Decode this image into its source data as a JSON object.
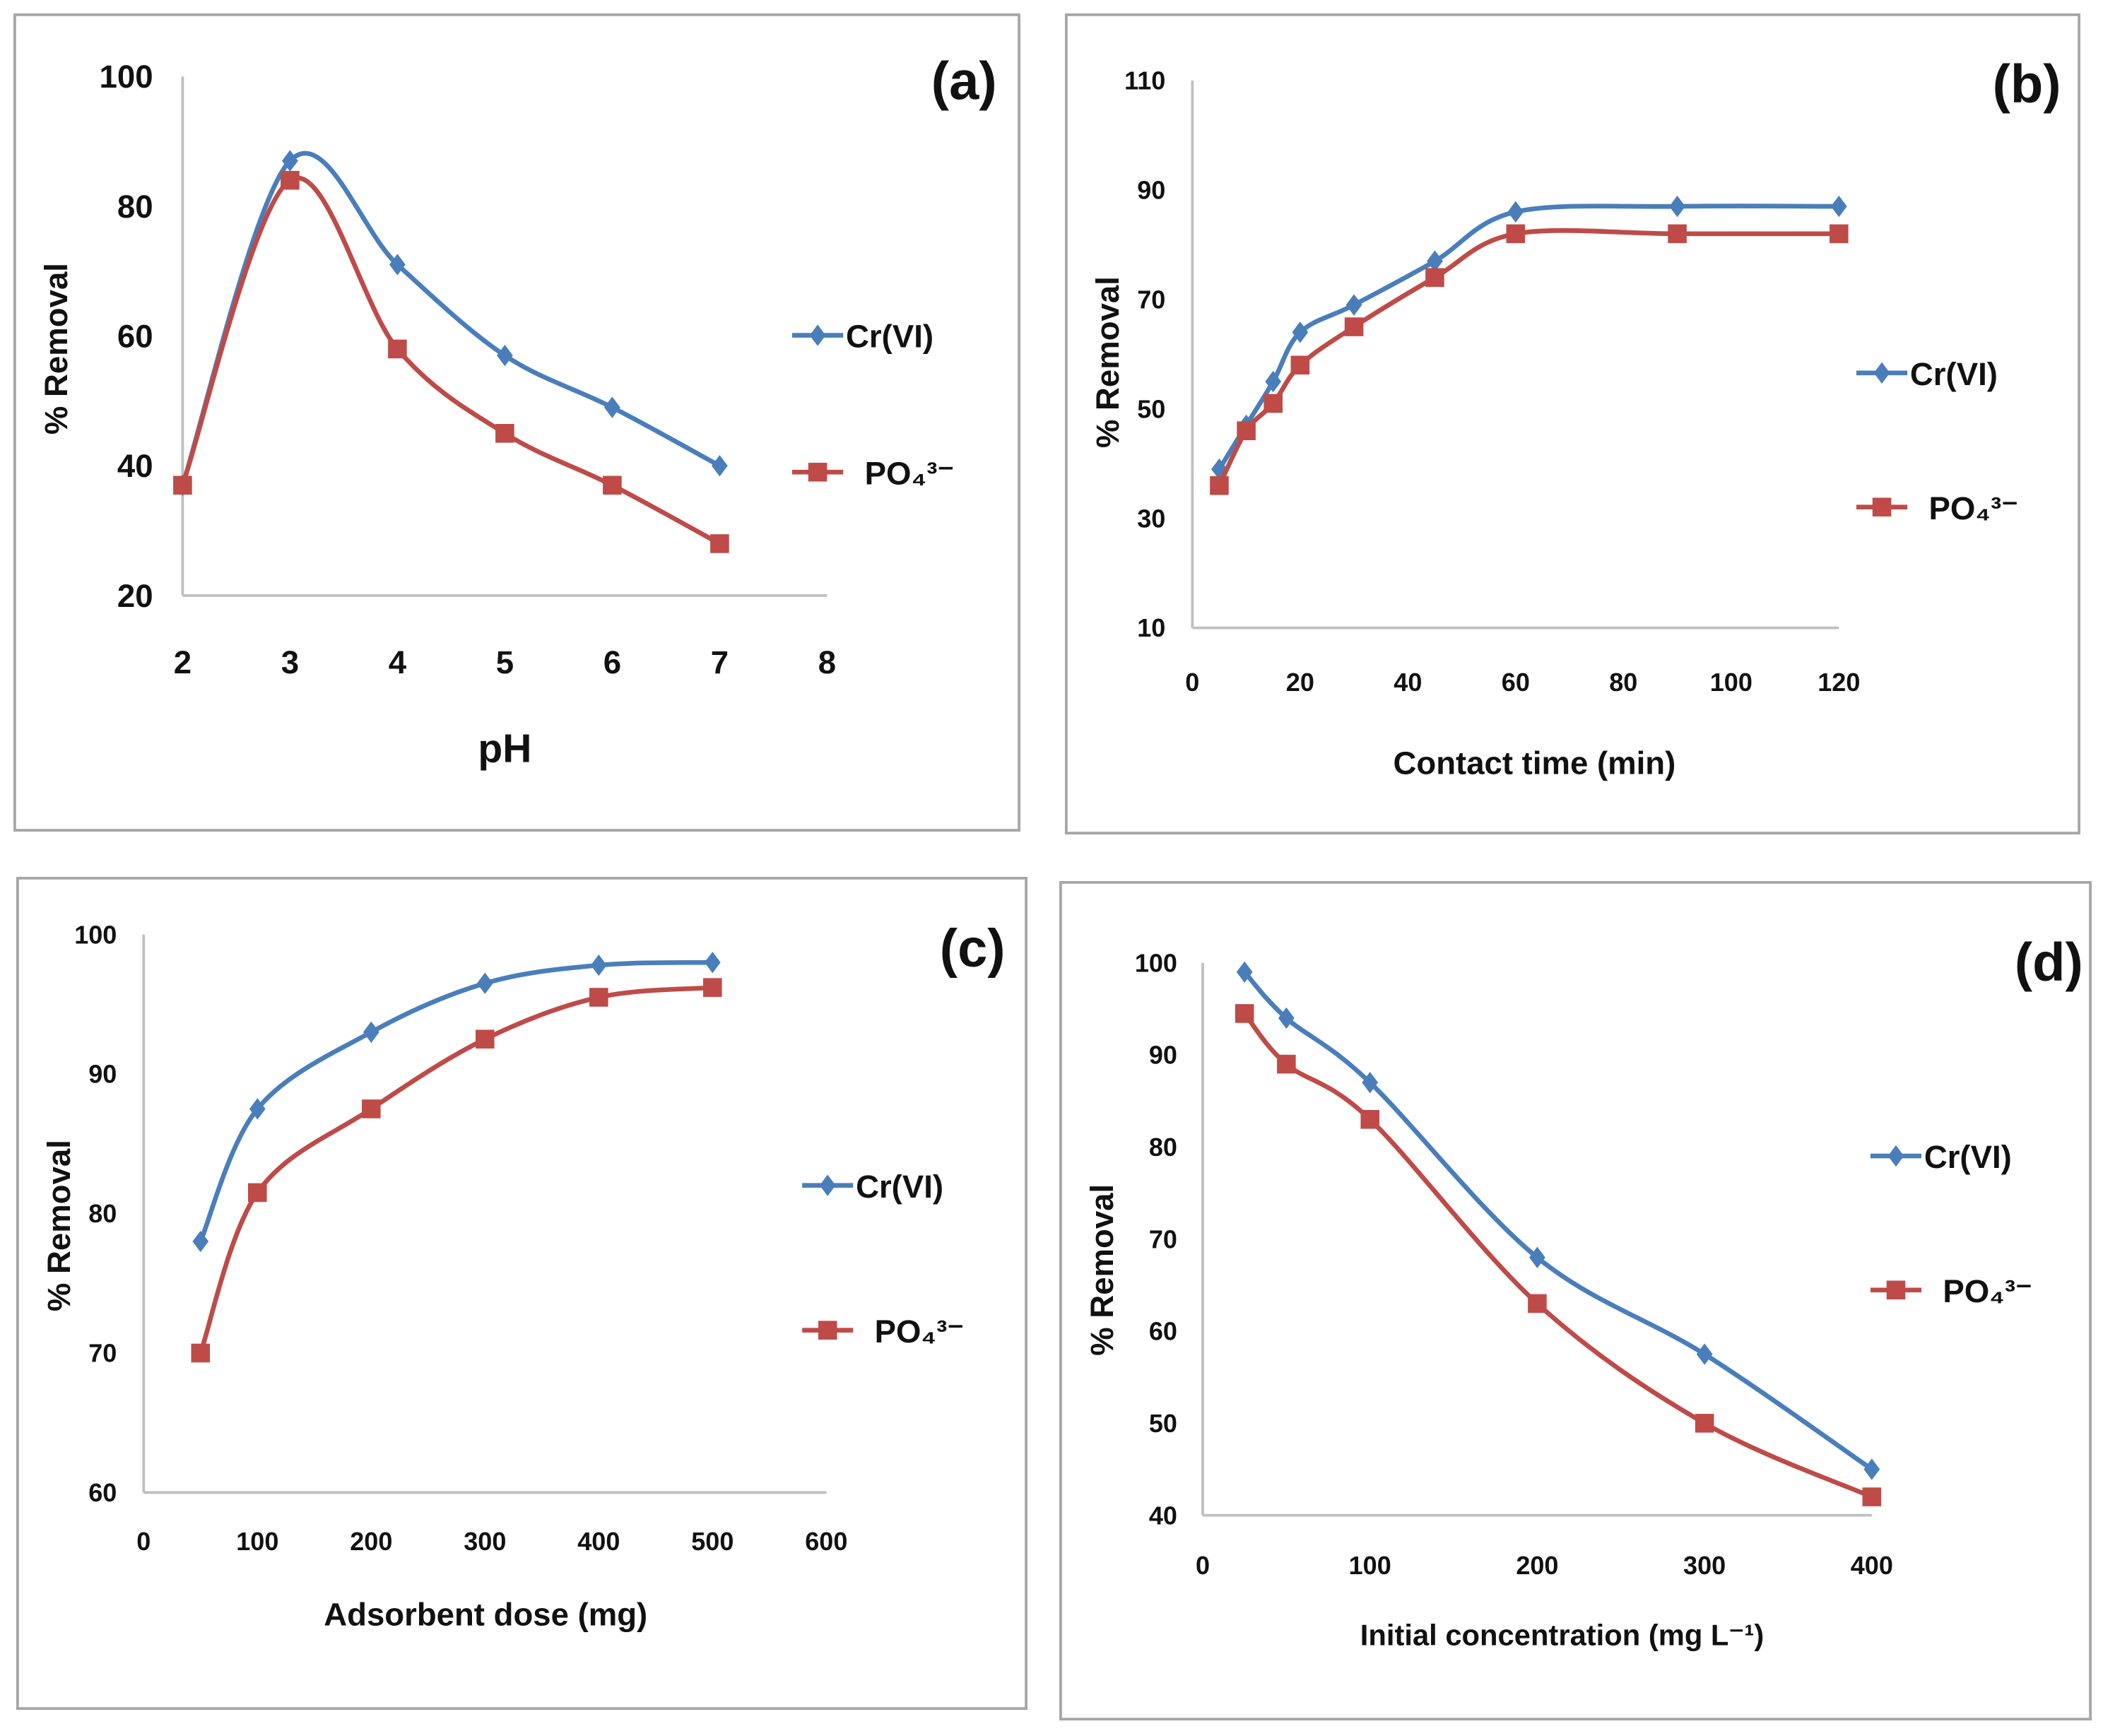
{
  "colors": {
    "cr": "#4a7ebb",
    "po4": "#be4b48",
    "axis": "#bfbfbf",
    "frame": "#a6a6a6"
  },
  "chart_data": [
    {
      "type": "line",
      "panel_label": "(a)",
      "xlabel": "pH",
      "ylabel": "% Removal",
      "xlim": [
        2,
        8
      ],
      "ylim": [
        20,
        100
      ],
      "xticks": [
        2,
        3,
        4,
        5,
        6,
        7,
        8
      ],
      "yticks": [
        20,
        40,
        60,
        80,
        100
      ],
      "x": [
        2,
        3,
        4,
        5,
        6,
        7
      ],
      "series": [
        {
          "name": "Cr(VI)",
          "values": [
            37,
            87,
            71,
            57,
            49,
            40
          ]
        },
        {
          "name": "PO₄³⁻",
          "values": [
            37,
            84,
            58,
            45,
            37,
            28
          ]
        }
      ],
      "legend": "right"
    },
    {
      "type": "line",
      "panel_label": "(b)",
      "xlabel": "Contact time (min)",
      "ylabel": "% Removal",
      "xlim": [
        0,
        120
      ],
      "ylim": [
        10,
        110
      ],
      "xticks": [
        0,
        20,
        40,
        60,
        80,
        100,
        120
      ],
      "yticks": [
        10,
        30,
        50,
        70,
        90,
        110
      ],
      "x": [
        5,
        10,
        15,
        20,
        30,
        45,
        60,
        90,
        120
      ],
      "series": [
        {
          "name": "Cr(VI)",
          "values": [
            39,
            47,
            55,
            64,
            69,
            77,
            86,
            87,
            87
          ]
        },
        {
          "name": "PO₄³⁻",
          "values": [
            36,
            46,
            51,
            58,
            65,
            74,
            82,
            82,
            82
          ]
        }
      ],
      "legend": "right"
    },
    {
      "type": "line",
      "panel_label": "(c)",
      "xlabel": "Adsorbent dose (mg)",
      "ylabel": "% Removal",
      "xlim": [
        0,
        600
      ],
      "ylim": [
        60,
        100
      ],
      "xticks": [
        0,
        100,
        200,
        300,
        400,
        500,
        600
      ],
      "yticks": [
        60,
        70,
        80,
        90,
        100
      ],
      "x": [
        50,
        100,
        200,
        300,
        400,
        500
      ],
      "series": [
        {
          "name": "Cr(VI)",
          "values": [
            78,
            87.5,
            93,
            96.5,
            97.8,
            98
          ]
        },
        {
          "name": "PO₄³⁻",
          "values": [
            70,
            81.5,
            87.5,
            92.5,
            95.5,
            96.2
          ]
        }
      ],
      "legend": "right"
    },
    {
      "type": "line",
      "panel_label": "(d)",
      "xlabel": "Initial concentration (mg L⁻¹)",
      "ylabel": "% Removal",
      "xlim": [
        0,
        400
      ],
      "ylim": [
        40,
        100
      ],
      "xticks": [
        0,
        100,
        200,
        300,
        400
      ],
      "yticks": [
        40,
        50,
        60,
        70,
        80,
        90,
        100
      ],
      "x": [
        25,
        50,
        100,
        200,
        300,
        400
      ],
      "series": [
        {
          "name": "Cr(VI)",
          "values": [
            99,
            94,
            87,
            68,
            57.5,
            45
          ]
        },
        {
          "name": "PO₄³⁻",
          "values": [
            94.5,
            89,
            83,
            63,
            50,
            42
          ]
        }
      ],
      "legend": "right"
    }
  ]
}
